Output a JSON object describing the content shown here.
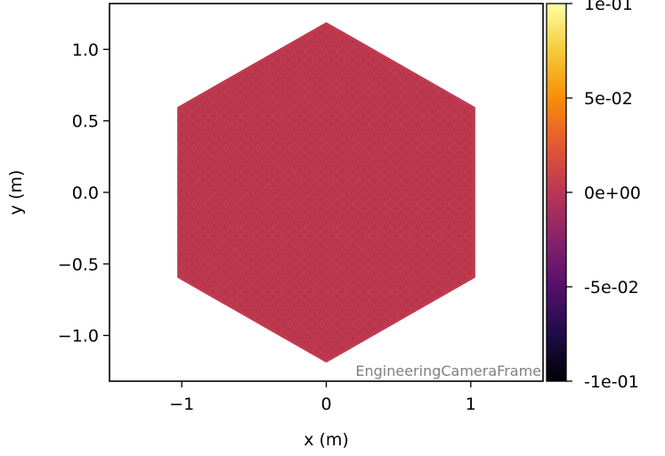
{
  "chart_data": {
    "type": "heatmap",
    "title": "",
    "xlabel": "x  (m)",
    "ylabel": "y  (m)",
    "xlim": [
      -1.5,
      1.5
    ],
    "ylim": [
      -1.32,
      1.32
    ],
    "x_ticks": [
      -1,
      0,
      1
    ],
    "x_tick_labels": [
      "−1",
      "0",
      "1"
    ],
    "y_ticks": [
      1.0,
      0.5,
      0.0,
      -0.5,
      -1.0
    ],
    "y_tick_labels": [
      "1.0",
      "0.5",
      "0.0",
      "−0.5",
      "−1.0"
    ],
    "annotation": "EngineeringCameraFrame",
    "pixel_grid": {
      "shape": "hexagon",
      "layout": "hexagonal camera array",
      "circumradius": 1.18,
      "value": 0.0,
      "color": "#c13a50"
    },
    "colorbar": {
      "colormap": "inferno",
      "vmin": -0.1,
      "vmax": 0.1,
      "ticks": [
        0.1,
        0.05,
        0.0,
        -0.05,
        -0.1
      ],
      "tick_labels": [
        "1e-01",
        "5e-02",
        "0e+00",
        "-5e-02",
        "-1e-01"
      ]
    },
    "grid": false
  }
}
